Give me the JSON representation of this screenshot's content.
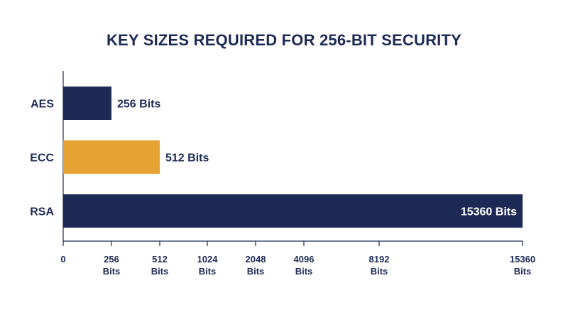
{
  "chart_data": {
    "type": "bar",
    "orientation": "horizontal",
    "title": "KEY SIZES REQUIRED FOR 256-BIT SECURITY",
    "xlabel": "",
    "ylabel": "",
    "grid": false,
    "categories": [
      "AES",
      "ECC",
      "RSA"
    ],
    "values": [
      256,
      512,
      15360
    ],
    "bar_labels": [
      "256 Bits",
      "512 Bits",
      "15360 Bits"
    ],
    "bar_colors": [
      "#1e2a56",
      "#e6a232",
      "#1e2a56"
    ],
    "x_ticks": [
      {
        "value": 0,
        "lines": [
          "0"
        ]
      },
      {
        "value": 256,
        "lines": [
          "256",
          "Bits"
        ]
      },
      {
        "value": 512,
        "lines": [
          "512",
          "Bits"
        ]
      },
      {
        "value": 1024,
        "lines": [
          "1024",
          "Bits"
        ]
      },
      {
        "value": 2048,
        "lines": [
          "2048",
          "Bits"
        ]
      },
      {
        "value": 4096,
        "lines": [
          "4096",
          "Bits"
        ]
      },
      {
        "value": 8192,
        "lines": [
          "8192",
          "Bits"
        ]
      },
      {
        "value": 15360,
        "lines": [
          "15360",
          "Bits"
        ]
      }
    ],
    "x_scale": "nonlinear (ticks unevenly spaced)",
    "xlim": [
      0,
      15360
    ]
  },
  "colors": {
    "navy": "#1e2a56",
    "gold": "#e6a232",
    "axis": "#1e2a56",
    "label_inside": "#ffffff"
  }
}
